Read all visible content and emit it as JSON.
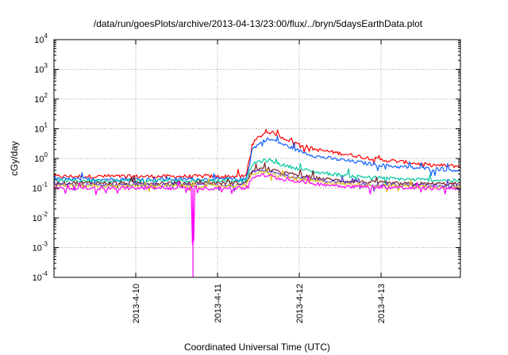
{
  "chart_data": {
    "type": "line",
    "title": "/data/run/goesPlots/archive/2013-04-13/23:00/flux/../bryn/5daysEarthData.plot",
    "xlabel": "Coordinated Universal Time (UTC)",
    "ylabel": "cGy/day",
    "yscale": "log",
    "ylim": [
      0.0001,
      10000
    ],
    "y_tick_exponents": [
      "4",
      "3",
      "2",
      "1",
      "0",
      "-1",
      "-2",
      "-3",
      "-4"
    ],
    "xlim_days": [
      9.0,
      13.97
    ],
    "x_ticks": [
      {
        "label": "2013-4-10",
        "day": 10
      },
      {
        "label": "2013-4-11",
        "day": 11
      },
      {
        "label": "2013-4-12",
        "day": 12
      },
      {
        "label": "2013-4-13",
        "day": 13
      }
    ],
    "grid": true,
    "series": [
      {
        "color": "#ff0000",
        "x": [
          9.0,
          10.0,
          11.0,
          11.35,
          11.42,
          11.5,
          11.6,
          11.7,
          11.8,
          12.0,
          12.2,
          12.5,
          12.8,
          13.0,
          13.3,
          13.6,
          13.97
        ],
        "y": [
          0.25,
          0.25,
          0.25,
          0.25,
          3.0,
          5.0,
          8.0,
          7.0,
          5.0,
          3.0,
          2.0,
          1.5,
          1.1,
          0.9,
          0.75,
          0.6,
          0.55
        ]
      },
      {
        "color": "#1060ff",
        "x": [
          9.0,
          10.0,
          11.0,
          11.35,
          11.42,
          11.5,
          11.6,
          11.7,
          11.8,
          12.0,
          12.2,
          12.5,
          12.8,
          13.0,
          13.3,
          13.6,
          13.97
        ],
        "y": [
          0.2,
          0.2,
          0.2,
          0.2,
          2.0,
          3.0,
          4.5,
          4.0,
          3.0,
          1.8,
          1.2,
          0.9,
          0.7,
          0.6,
          0.5,
          0.45,
          0.4
        ]
      },
      {
        "color": "#00c8a0",
        "x": [
          9.0,
          10.0,
          11.0,
          11.35,
          11.42,
          11.5,
          11.6,
          11.7,
          11.8,
          12.0,
          12.2,
          12.5,
          12.8,
          13.0,
          13.3,
          13.6,
          13.97
        ],
        "y": [
          0.18,
          0.18,
          0.18,
          0.18,
          0.6,
          0.8,
          0.85,
          0.75,
          0.6,
          0.45,
          0.35,
          0.28,
          0.24,
          0.22,
          0.2,
          0.19,
          0.18
        ]
      },
      {
        "color": "#7a2020",
        "x": [
          9.0,
          10.0,
          11.0,
          11.35,
          11.42,
          11.5,
          11.6,
          11.7,
          11.8,
          12.0,
          12.2,
          12.5,
          12.8,
          13.0,
          13.3,
          13.6,
          13.97
        ],
        "y": [
          0.15,
          0.15,
          0.15,
          0.15,
          0.4,
          0.45,
          0.42,
          0.38,
          0.33,
          0.27,
          0.22,
          0.18,
          0.16,
          0.15,
          0.14,
          0.14,
          0.14
        ]
      },
      {
        "color": "#6040d0",
        "x": [
          9.0,
          10.0,
          11.0,
          11.35,
          11.42,
          11.5,
          11.6,
          11.7,
          11.8,
          12.0,
          12.2,
          12.5,
          12.8,
          13.0,
          13.3,
          13.6,
          13.97
        ],
        "y": [
          0.13,
          0.13,
          0.13,
          0.13,
          0.35,
          0.38,
          0.36,
          0.32,
          0.28,
          0.23,
          0.19,
          0.16,
          0.14,
          0.13,
          0.13,
          0.12,
          0.12
        ]
      },
      {
        "color": "#e0c020",
        "x": [
          9.0,
          10.0,
          11.0,
          11.35,
          11.42,
          11.5,
          11.6,
          11.7,
          11.8,
          12.0,
          12.2,
          12.5,
          12.8,
          13.0,
          13.3,
          13.6,
          13.97
        ],
        "y": [
          0.12,
          0.12,
          0.12,
          0.12,
          0.3,
          0.33,
          0.31,
          0.28,
          0.25,
          0.2,
          0.17,
          0.14,
          0.13,
          0.12,
          0.12,
          0.11,
          0.11
        ]
      },
      {
        "color": "#ff00ff",
        "x": [
          9.0,
          9.5,
          10.0,
          10.6,
          10.68,
          10.7,
          10.72,
          10.8,
          11.0,
          11.35,
          11.42,
          11.5,
          11.6,
          11.7,
          11.8,
          12.0,
          12.2,
          12.5,
          12.8,
          13.0,
          13.3,
          13.6,
          13.97
        ],
        "y": [
          0.1,
          0.1,
          0.1,
          0.1,
          0.1,
          0.0001,
          0.1,
          0.1,
          0.1,
          0.1,
          0.22,
          0.28,
          0.26,
          0.23,
          0.2,
          0.17,
          0.14,
          0.12,
          0.11,
          0.11,
          0.1,
          0.1,
          0.1
        ]
      }
    ]
  }
}
